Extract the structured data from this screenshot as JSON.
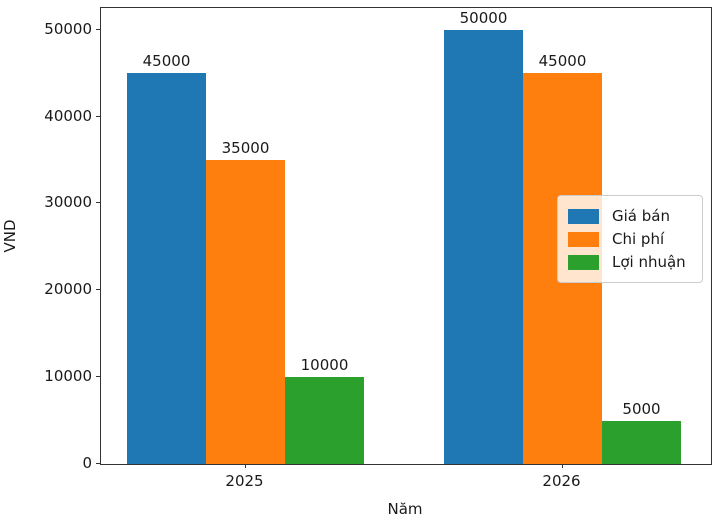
{
  "figure": {
    "background": "#ffffff",
    "spine_color": "#333333",
    "text_color": "#1a1a1a"
  },
  "chart_data": {
    "type": "bar",
    "title": "",
    "xlabel": "Năm",
    "ylabel": "VND",
    "categories": [
      "2025",
      "2026"
    ],
    "series": [
      {
        "name": "Giá bán",
        "color": "#1f77b4",
        "values": [
          45000,
          50000
        ]
      },
      {
        "name": "Chi phí",
        "color": "#ff7f0e",
        "values": [
          35000,
          45000
        ]
      },
      {
        "name": "Lợi nhuận",
        "color": "#2ca02c",
        "values": [
          10000,
          5000
        ]
      }
    ],
    "ylim": [
      0,
      52500
    ],
    "yticks": [
      0,
      10000,
      20000,
      30000,
      40000,
      50000
    ],
    "bar_value_labels": true,
    "grid": false,
    "legend_position": "center-right"
  }
}
